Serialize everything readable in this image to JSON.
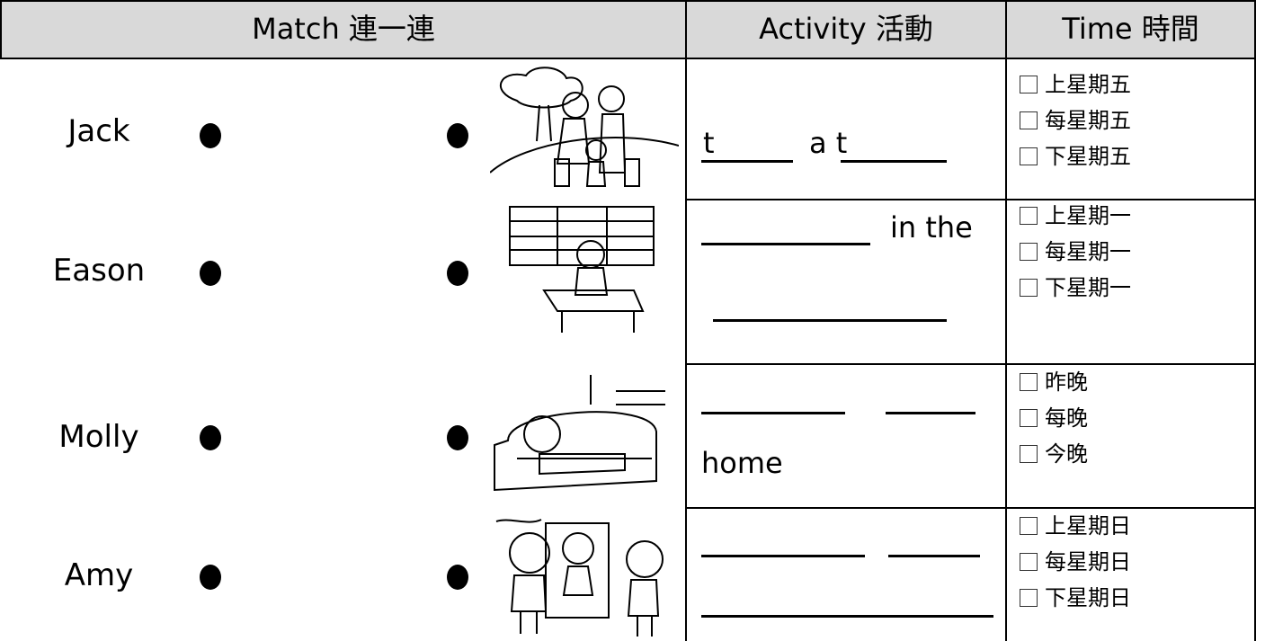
{
  "header": {
    "match": "Match 連一連",
    "activity": "Activity 活動",
    "time": "Time 時間"
  },
  "rows": [
    {
      "name": "Jack",
      "activity": [
        "t",
        "a t"
      ],
      "time": [
        "上星期五",
        "每星期五",
        "下星期五"
      ]
    },
    {
      "name": "Eason",
      "activity": [
        "in the"
      ],
      "time": [
        "上星期一",
        "每星期一",
        "下星期一"
      ]
    },
    {
      "name": "Molly",
      "activity": [
        "home"
      ],
      "time": [
        "昨晚",
        "每晚",
        "今晚"
      ]
    },
    {
      "name": "Amy",
      "activity": [],
      "time": [
        "上星期日",
        "每星期日",
        "下星期日"
      ]
    }
  ]
}
